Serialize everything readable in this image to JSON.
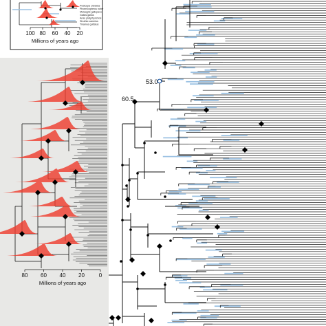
{
  "main_tree": {
    "node_labels": [
      "53.0",
      "60.5"
    ],
    "branch_color": "#111111",
    "ci_bar_color": "#9cc2e3",
    "node_marker_color": "#000000"
  },
  "inset_top": {
    "species": [
      "Podicepa cristatus",
      "Phoenicopterus ruber",
      "Meleagris gallopavo",
      "Gallus gallus",
      "Anas platyrhynchos",
      "Struthio camelus",
      "Tinamus guttatus"
    ],
    "axis_ticks": [
      "100",
      "80",
      "60",
      "40",
      "20"
    ],
    "axis_title": "Millions of years ago"
  },
  "inset_left": {
    "axis_ticks": [
      "80",
      "60",
      "40",
      "20",
      "0"
    ],
    "axis_title": "Millions of years ago",
    "panel_color": "#e8e8e6",
    "density_color": "#ef3b2c"
  }
}
